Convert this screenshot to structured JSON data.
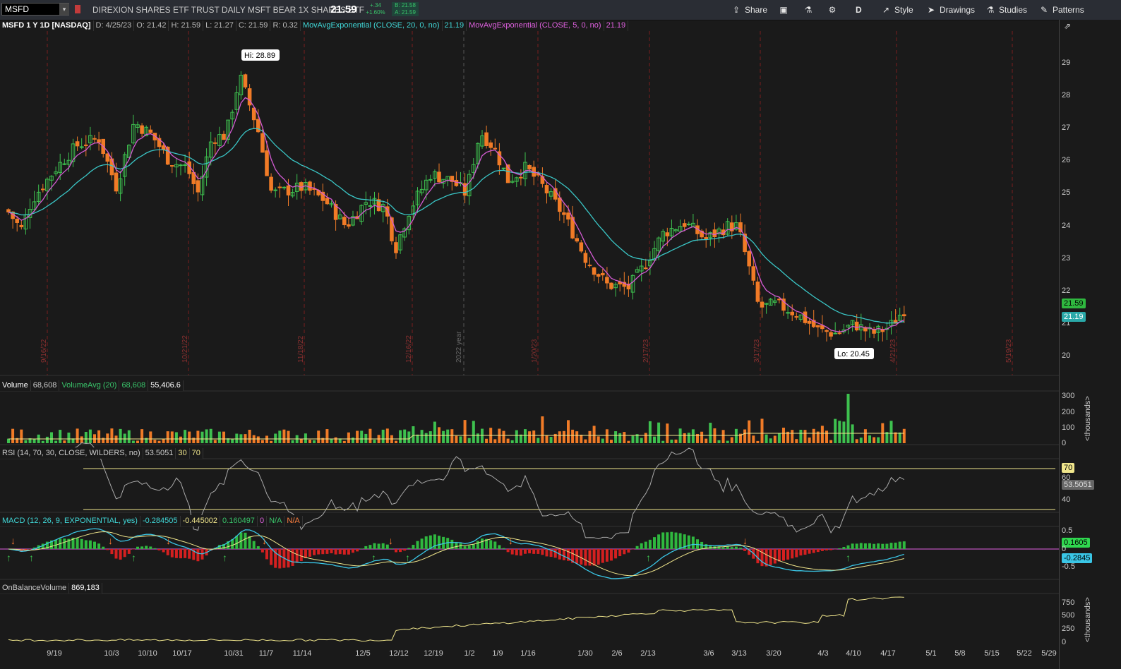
{
  "topbar": {
    "symbol": "MSFD",
    "name": "DIREXION SHARES ETF TRUST DAILY MSFT BEAR 1X SHARES ETF",
    "last": "21.59",
    "change": "+.34",
    "change_pct": "+1.60%",
    "bid": "B: 21.58",
    "ask": "A: 21.59",
    "share_label": "Share",
    "d_label": "D",
    "style_label": "Style",
    "drawings_label": "Drawings",
    "studies_label": "Studies",
    "patterns_label": "Patterns"
  },
  "info": {
    "sym": "MSFD 1 Y 1D [NASDAQ]",
    "date": "D: 4/25/23",
    "open": "O: 21.42",
    "high": "H: 21.59",
    "low": "L: 21.27",
    "close": "C: 21.59",
    "range": "R: 0.32",
    "ema20": "MovAvgExponential (CLOSE, 20, 0, no)",
    "ema20_val": "21.19",
    "ema5": "MovAvgExponential (CLOSE, 5, 0, no)",
    "ema5_val": "21.19"
  },
  "annotations": {
    "hi": "Hi: 28.89",
    "lo": "Lo: 20.45",
    "year": "2022 year"
  },
  "vertical_dates": [
    "9/16/22",
    "10/21/22",
    "11/18/22",
    "12/16/22",
    "1/20/23",
    "2/17/23",
    "3/17/23",
    "4/21/23",
    "5/19/23"
  ],
  "price_axis": [
    "29",
    "28",
    "27",
    "26",
    "25",
    "24",
    "23",
    "22",
    "21",
    "20"
  ],
  "price_tags": {
    "last": "21.59",
    "ema": "21.19"
  },
  "volume": {
    "label": "Volume",
    "value": "68,608",
    "avg_label": "VolumeAvg (20)",
    "avg_val": "68,608",
    "avg_extra": "55,406.6",
    "axis": [
      "300",
      "200",
      "100",
      "0"
    ],
    "unit": "<thousands>"
  },
  "rsi": {
    "label": "RSI (14, 70, 30, CLOSE, WILDERS, no)",
    "value": "53.5051",
    "p30": "30",
    "p70": "70",
    "axis": [
      "60",
      "40"
    ],
    "tag70": "70",
    "tag_val": "53.5051"
  },
  "macd": {
    "label": "MACD (12, 26, 9, EXPONENTIAL, yes)",
    "v1": "-0.284505",
    "v2": "-0.445002",
    "v3": "0.160497",
    "v4": "0",
    "v5": "N/A",
    "v6": "N/A",
    "axis": [
      "0.5",
      "0",
      "-0.5"
    ],
    "tag_hist": "0.1605",
    "tag_val": "-0.2845"
  },
  "obv": {
    "label": "OnBalanceVolume",
    "value": "869,183",
    "axis": [
      "750",
      "500",
      "250",
      "0"
    ],
    "unit": "<thousands>"
  },
  "dates": [
    "9/19",
    "10/3",
    "10/10",
    "10/17",
    "10/31",
    "11/7",
    "11/14",
    "12/5",
    "12/12",
    "12/19",
    "1/2",
    "1/9",
    "1/16",
    "1/30",
    "2/6",
    "2/13",
    "3/6",
    "3/13",
    "3/20",
    "4/3",
    "4/10",
    "4/17",
    "5/1",
    "5/8",
    "5/15",
    "5/22",
    "5/29"
  ]
}
